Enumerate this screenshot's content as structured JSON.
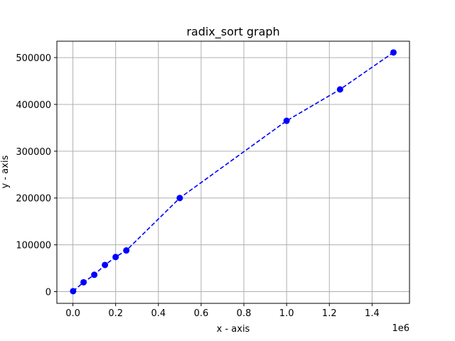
{
  "chart_data": {
    "type": "line",
    "title": "radix_sort graph",
    "xlabel": "x - axis",
    "ylabel": "y - axis",
    "x_offset_label": "1e6",
    "xlim": [
      -75000,
      1575000
    ],
    "ylim": [
      -25000,
      535000
    ],
    "x_ticks": [
      0,
      200000,
      400000,
      600000,
      800000,
      1000000,
      1200000,
      1400000
    ],
    "x_tick_labels": [
      "0.0",
      "0.2",
      "0.4",
      "0.6",
      "0.8",
      "1.0",
      "1.2",
      "1.4"
    ],
    "y_ticks": [
      0,
      100000,
      200000,
      300000,
      400000,
      500000
    ],
    "y_tick_labels": [
      "0",
      "100000",
      "200000",
      "300000",
      "400000",
      "500000"
    ],
    "grid": true,
    "series": [
      {
        "color": "#0000ff",
        "line_style": "dashed",
        "marker": "circle",
        "x": [
          1000,
          50000,
          100000,
          150000,
          200000,
          250000,
          500000,
          1000000,
          1250000,
          1500000
        ],
        "y": [
          1000,
          20000,
          36000,
          57000,
          74000,
          88000,
          200000,
          365000,
          432000,
          511000
        ]
      }
    ]
  }
}
